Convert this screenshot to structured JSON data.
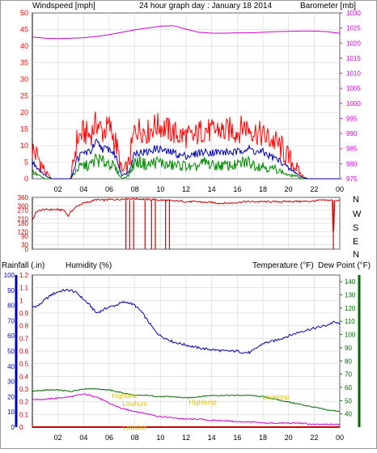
{
  "colors": {
    "wind": "#ff0000",
    "barometer": "#cc00cc",
    "gust_avg": "#0000aa",
    "wind_low": "#008800",
    "direction": "#cc0000",
    "rain": "#cc0000",
    "humidity": "#0000aa",
    "temperature": "#006600",
    "dewpoint": "#cc00cc",
    "annotation": "#e0c000",
    "axis": "#000000",
    "grid": "#cccccc"
  },
  "header": {
    "left_label": "Windspeed [mph]",
    "center_title": "24 hour graph day : January 18 2014",
    "right_label": "Barometer [mb]"
  },
  "direction_panel": {
    "compass_labels": [
      "N",
      "W",
      "S",
      "E",
      "N"
    ]
  },
  "bottom_header": {
    "rain_label": "Rainfall (.in)",
    "humidity_label": "Humidity (%)",
    "temperature_label": "Temperature (°F)",
    "dewpoint_label": "Dew Point (°F)"
  },
  "chart_data": [
    {
      "type": "line",
      "title": "24 hour graph day : January 18 2014",
      "x_ticks": [
        "02",
        "04",
        "06",
        "08",
        "10",
        "12",
        "14",
        "16",
        "18",
        "20",
        "22",
        "00"
      ],
      "left_axis": {
        "label": "Windspeed [mph]",
        "range": [
          0,
          50
        ],
        "ticks": [
          0,
          5,
          10,
          15,
          20,
          25,
          30,
          35,
          40,
          45,
          50
        ]
      },
      "right_axis": {
        "label": "Barometer [mb]",
        "range": [
          975,
          1030
        ],
        "ticks": [
          975,
          980,
          985,
          990,
          995,
          1000,
          1005,
          1010,
          1015,
          1020,
          1025,
          1030
        ]
      },
      "grid": true,
      "series": [
        {
          "name": "Windspeed",
          "axis": "left",
          "x": [
            0,
            0.5,
            1,
            1.5,
            2,
            2.5,
            3,
            3.5,
            4,
            4.5,
            5,
            5.5,
            6,
            6.5,
            7,
            7.5,
            8,
            8.5,
            9,
            9.5,
            10,
            10.5,
            11,
            11.5,
            12,
            12.5,
            13,
            13.5,
            14,
            14.5,
            15,
            15.5,
            16,
            16.5,
            17,
            17.5,
            18,
            18.5,
            19,
            19.5,
            20,
            20.5,
            21,
            21.5,
            22,
            22.5,
            23,
            23.5,
            24
          ],
          "y": [
            9,
            6,
            2,
            0,
            0,
            0,
            0,
            12,
            14,
            13,
            17,
            14,
            16,
            11,
            2,
            4,
            15,
            15,
            14,
            16,
            16,
            15,
            14,
            13,
            13,
            12,
            14,
            15,
            14,
            15,
            14,
            15,
            14,
            16,
            15,
            14,
            13,
            12,
            11,
            9,
            6,
            4,
            1,
            0,
            0,
            0,
            0,
            0,
            0
          ]
        },
        {
          "name": "Barometer",
          "axis": "right",
          "x": [
            0,
            1,
            2,
            3,
            4,
            5,
            6,
            7,
            8,
            9,
            10,
            11,
            12,
            13,
            14,
            15,
            16,
            17,
            18,
            19,
            20,
            21,
            22,
            23,
            24
          ],
          "y": [
            1022,
            1021.6,
            1021.5,
            1021.6,
            1021.8,
            1022.2,
            1022.8,
            1023.6,
            1024.4,
            1025,
            1025.6,
            1025.8,
            1024.6,
            1023.6,
            1023.3,
            1023.3,
            1023.4,
            1023.4,
            1023.6,
            1023.8,
            1023.9,
            1024,
            1024,
            1023.8,
            1023.2
          ]
        },
        {
          "name": "Average wind",
          "axis": "left",
          "x": [
            0,
            0.5,
            1,
            1.5,
            2,
            2.5,
            3,
            3.5,
            4,
            4.5,
            5,
            5.5,
            6,
            6.5,
            7,
            7.5,
            8,
            8.5,
            9,
            9.5,
            10,
            10.5,
            11,
            11.5,
            12,
            12.5,
            13,
            13.5,
            14,
            14.5,
            15,
            15.5,
            16,
            16.5,
            17,
            17.5,
            18,
            18.5,
            19,
            19.5,
            20,
            20.5,
            21,
            21.5,
            22,
            22.5,
            23,
            23.5,
            24
          ],
          "y": [
            5,
            3,
            1,
            0,
            0,
            0,
            0,
            6,
            8,
            8,
            11,
            9,
            9,
            7,
            1,
            2,
            8,
            8,
            8,
            9,
            9,
            8,
            8,
            7,
            7,
            7,
            8,
            8,
            8,
            8,
            8,
            8,
            8,
            9,
            9,
            8,
            8,
            7,
            6,
            5,
            3,
            2,
            0.5,
            0,
            0,
            0,
            0,
            0,
            0
          ]
        },
        {
          "name": "Low wind",
          "axis": "left",
          "x": [
            0,
            0.5,
            1,
            1.5,
            2,
            2.5,
            3,
            3.5,
            4,
            4.5,
            5,
            5.5,
            6,
            6.5,
            7,
            7.5,
            8,
            8.5,
            9,
            9.5,
            10,
            10.5,
            11,
            11.5,
            12,
            12.5,
            13,
            13.5,
            14,
            14.5,
            15,
            15.5,
            16,
            16.5,
            17,
            17.5,
            18,
            18.5,
            19,
            19.5,
            20,
            20.5,
            21,
            21.5,
            22,
            22.5,
            23,
            23.5,
            24
          ],
          "y": [
            2,
            1,
            0,
            0,
            0,
            0,
            0,
            3,
            4,
            4,
            6,
            5,
            5,
            3,
            0,
            1,
            5,
            5,
            4,
            5,
            5,
            4,
            4,
            4,
            4,
            3,
            4,
            5,
            4,
            4,
            4,
            4,
            4,
            5,
            5,
            4,
            4,
            3,
            3,
            2,
            1,
            1,
            0,
            0,
            0,
            0,
            0,
            0,
            0
          ]
        }
      ]
    },
    {
      "type": "line",
      "title": "",
      "x_ticks": [
        "02",
        "04",
        "06",
        "08",
        "10",
        "12",
        "14",
        "16",
        "18",
        "20",
        "22",
        "00"
      ],
      "left_axis": {
        "label": "",
        "range": [
          0,
          360
        ],
        "ticks": [
          0,
          30,
          90,
          120,
          180,
          210,
          270,
          300,
          360
        ]
      },
      "right_axis": {
        "label": "",
        "labels": [
          "N",
          "W",
          "S",
          "E",
          "N"
        ]
      },
      "grid": true,
      "series": [
        {
          "name": "Wind direction",
          "x": [
            0,
            0.3,
            0.8,
            1.5,
            2,
            2.5,
            2.8,
            3,
            3.5,
            4,
            4.5,
            5,
            5.5,
            6,
            6.5,
            7,
            7.5,
            8,
            8.5,
            9,
            9.5,
            10,
            10.5,
            11,
            11.5,
            12,
            12.5,
            13,
            13.5,
            14,
            14.5,
            15,
            15.5,
            16,
            16.5,
            17,
            17.5,
            18,
            18.5,
            19,
            19.5,
            20,
            20.5,
            21,
            21.5,
            22,
            22.5,
            23,
            23.4,
            23.5,
            23.6,
            24
          ],
          "y": [
            200,
            260,
            275,
            275,
            275,
            270,
            230,
            260,
            300,
            320,
            330,
            345,
            340,
            345,
            345,
            348,
            350,
            350,
            348,
            345,
            345,
            340,
            340,
            335,
            335,
            330,
            330,
            330,
            325,
            325,
            320,
            320,
            320,
            325,
            330,
            330,
            330,
            330,
            330,
            330,
            330,
            332,
            332,
            332,
            332,
            335,
            340,
            340,
            340,
            20,
            340,
            340
          ]
        }
      ]
    },
    {
      "type": "line",
      "title": "",
      "x_ticks": [
        "02",
        "04",
        "06",
        "08",
        "10",
        "12",
        "14",
        "16",
        "18",
        "20",
        "22",
        "00"
      ],
      "axes": [
        {
          "label": "Rainfall (.in)",
          "range": [
            0,
            1.2
          ],
          "ticks": [
            0,
            0.1,
            0.2,
            0.3,
            0.4,
            0.5,
            0.6,
            0.7,
            0.8,
            0.9,
            1,
            1.1,
            1.2
          ]
        },
        {
          "label": "Humidity (%)",
          "range": [
            0,
            100
          ],
          "ticks": [
            0,
            10,
            20,
            30,
            40,
            50,
            60,
            70,
            80,
            90,
            100
          ]
        },
        {
          "label": "Temperature (°F) / Dew Point (°F)",
          "range": [
            30,
            145
          ],
          "ticks": [
            40,
            50,
            60,
            70,
            80,
            90,
            100,
            110,
            120,
            130,
            140
          ]
        }
      ],
      "grid": true,
      "series": [
        {
          "name": "Humidity",
          "axis": "humidity",
          "x": [
            0,
            0.5,
            1,
            1.5,
            2,
            2.5,
            3,
            3.5,
            4,
            4.5,
            5,
            5.5,
            6,
            6.5,
            7,
            7.5,
            8,
            8.5,
            9,
            9.5,
            10,
            11,
            12,
            13,
            14,
            15,
            16,
            16.5,
            17,
            17.5,
            18,
            19,
            20,
            21,
            22,
            23,
            23.5,
            24
          ],
          "y": [
            79,
            80,
            84,
            87,
            89,
            90,
            90,
            88,
            84,
            80,
            75,
            77,
            79,
            80,
            82,
            82,
            80,
            76,
            70,
            64,
            60,
            56,
            54,
            52,
            51,
            50,
            50,
            49,
            49,
            52,
            55,
            57,
            60,
            63,
            65,
            67,
            69,
            68
          ]
        },
        {
          "name": "Temperature",
          "axis": "temperature",
          "x": [
            0,
            1,
            2,
            3,
            4,
            5,
            6,
            7,
            8,
            9,
            10,
            11,
            12,
            13,
            14,
            15,
            16,
            17,
            18,
            19,
            20,
            21,
            22,
            23,
            24
          ],
          "y": [
            57,
            58,
            58,
            57,
            59,
            59,
            58,
            56,
            54,
            54,
            53,
            53,
            52,
            53,
            54,
            54,
            54,
            54,
            53,
            51,
            49,
            47,
            45,
            43,
            42
          ]
        },
        {
          "name": "Dew Point",
          "axis": "temperature",
          "x": [
            0,
            1,
            2,
            3,
            4,
            5,
            6,
            7,
            8,
            9,
            10,
            11,
            12,
            13,
            14,
            15,
            16,
            17,
            18,
            19,
            20,
            21,
            22,
            23,
            24
          ],
          "y": [
            51,
            51,
            52,
            53,
            55,
            53,
            48,
            44,
            42,
            40,
            38,
            37,
            36,
            36,
            35,
            35,
            34,
            34,
            33,
            33,
            33,
            33,
            32,
            32,
            32
          ]
        },
        {
          "name": "Rainfall",
          "axis": "rain",
          "x": [
            0,
            24
          ],
          "y": [
            0,
            0
          ]
        }
      ],
      "annotations": [
        {
          "text": "Highdew",
          "x": 7.2,
          "temp": 52
        },
        {
          "text": "Lowhum",
          "x": 8,
          "temp": 46
        },
        {
          "text": "Hightemp",
          "x": 13.3,
          "temp": 47
        },
        {
          "text": "Lowtemp",
          "x": 19,
          "temp": 51
        },
        {
          "text": "Lowdew",
          "x": 8,
          "temp": 28
        }
      ]
    }
  ]
}
